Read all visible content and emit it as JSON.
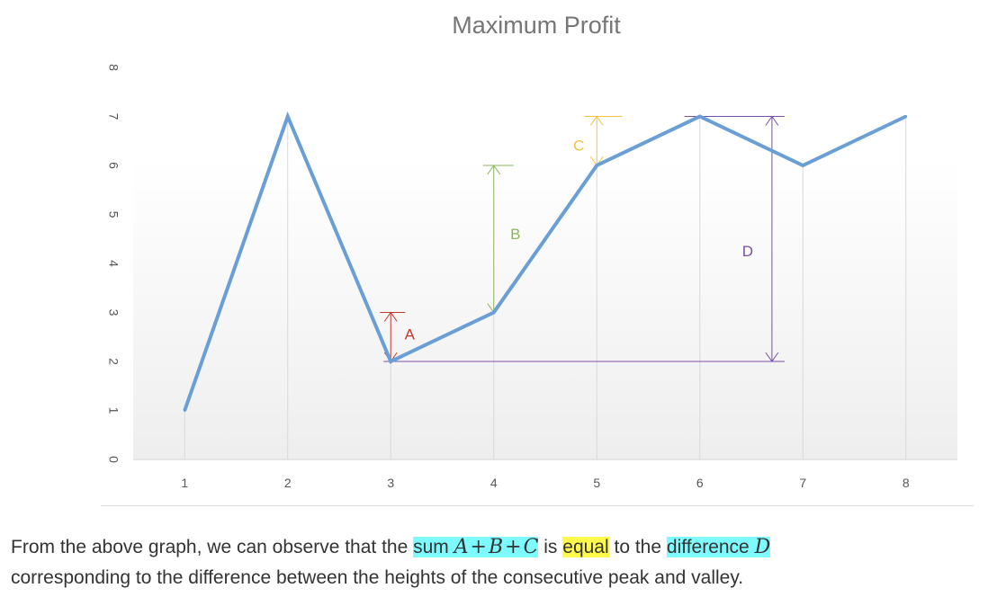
{
  "chart_data": {
    "type": "line",
    "title": "Maximum Profit",
    "xlabel": "",
    "ylabel": "",
    "x": [
      1,
      2,
      3,
      4,
      5,
      6,
      7,
      8
    ],
    "values": [
      1,
      7,
      2,
      3,
      6,
      7,
      6,
      7
    ],
    "xlim": [
      0.5,
      8.5
    ],
    "ylim": [
      0,
      8
    ],
    "y_ticks": [
      0,
      1,
      2,
      3,
      4,
      5,
      6,
      7,
      8
    ],
    "x_ticks": [
      1,
      2,
      3,
      4,
      5,
      6,
      7,
      8
    ],
    "grid": "vertical",
    "annotations": [
      {
        "label": "A",
        "x": 3,
        "from": 2,
        "to": 3,
        "color": "#c0392b"
      },
      {
        "label": "B",
        "x": 4,
        "from": 3,
        "to": 6,
        "color": "#8ab45a"
      },
      {
        "label": "C",
        "x": 5,
        "from": 6,
        "to": 7,
        "color": "#f5c342"
      },
      {
        "label": "D",
        "x": 6.7,
        "from": 2,
        "to": 7,
        "color": "#7a4fa8"
      }
    ],
    "colors": {
      "line": "#6a9fd6",
      "grid": "#d9d9d9",
      "axis_text": "#555555",
      "title": "#767676"
    }
  },
  "caption": {
    "t1": "From the above graph, we can observe that the ",
    "sum": "sum",
    "A": "A",
    "plus1": "+",
    "B": "B",
    "plus2": "+",
    "C": "C",
    "is": "is",
    "equal": "equal",
    "to_the": "to the",
    "difference": "difference",
    "D": "D",
    "t2": "corresponding to the difference between the heights of the consecutive peak and valley."
  }
}
